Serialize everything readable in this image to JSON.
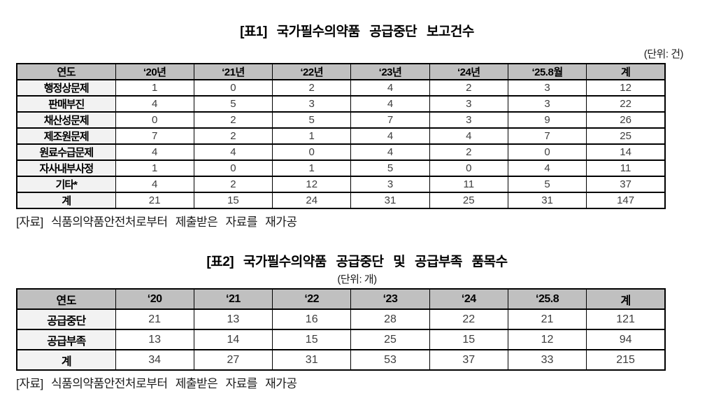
{
  "colors": {
    "header_bg": "#c0c0c0",
    "label_bg": "#f2f2f2",
    "border": "#000000"
  },
  "table1": {
    "title": "[표1] 국가필수의약품 공급중단 보고건수",
    "unit": "(단위: 건)",
    "columns": [
      "연도",
      "‘20년",
      "‘21년",
      "‘22년",
      "‘23년",
      "‘24년",
      "‘25.8월",
      "계"
    ],
    "rows": [
      {
        "label": "행정상문제",
        "values": [
          "1",
          "0",
          "2",
          "4",
          "2",
          "3",
          "12"
        ]
      },
      {
        "label": "판매부진",
        "values": [
          "4",
          "5",
          "3",
          "4",
          "3",
          "3",
          "22"
        ]
      },
      {
        "label": "채산성문제",
        "values": [
          "0",
          "2",
          "5",
          "7",
          "3",
          "9",
          "26"
        ]
      },
      {
        "label": "제조원문제",
        "values": [
          "7",
          "2",
          "1",
          "4",
          "4",
          "7",
          "25"
        ]
      },
      {
        "label": "원료수급문제",
        "values": [
          "4",
          "4",
          "0",
          "4",
          "2",
          "0",
          "14"
        ]
      },
      {
        "label": "자사내부사정",
        "values": [
          "1",
          "0",
          "1",
          "5",
          "0",
          "4",
          "11"
        ]
      },
      {
        "label": "기타*",
        "values": [
          "4",
          "2",
          "12",
          "3",
          "11",
          "5",
          "37"
        ]
      },
      {
        "label": "계",
        "values": [
          "21",
          "15",
          "24",
          "31",
          "25",
          "31",
          "147"
        ]
      }
    ],
    "source": "[자료] 식품의약품안전처로부터 제출받은 자료를 재가공"
  },
  "table2": {
    "title": "[표2] 국가필수의약품 공급중단 및 공급부족 품목수",
    "unit": "(단위: 개)",
    "columns": [
      "연도",
      "‘20",
      "‘21",
      "‘22",
      "‘23",
      "‘24",
      "‘25.8",
      "계"
    ],
    "rows": [
      {
        "label": "공급중단",
        "values": [
          "21",
          "13",
          "16",
          "28",
          "22",
          "21",
          "121"
        ]
      },
      {
        "label": "공급부족",
        "values": [
          "13",
          "14",
          "15",
          "25",
          "15",
          "12",
          "94"
        ]
      },
      {
        "label": "계",
        "values": [
          "34",
          "27",
          "31",
          "53",
          "37",
          "33",
          "215"
        ]
      }
    ],
    "source": "[자료] 식품의약품안전처로부터 제출받은 자료를 재가공"
  }
}
